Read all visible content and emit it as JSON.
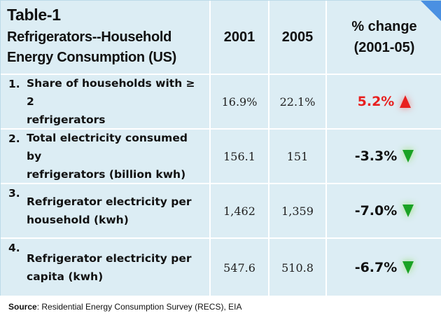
{
  "header": {
    "table_id": "Table-1",
    "subtitle_line1": "Refrigerators--Household",
    "subtitle_line2": "Energy Consumption (US)",
    "col_2001": "2001",
    "col_2005": "2005",
    "col_change_line1": "% change",
    "col_change_line2": "(2001-05)"
  },
  "rows": [
    {
      "num": "1.",
      "label_line1": "Share of households with ≥ 2",
      "label_line2": "refrigerators",
      "v2001": "16.9%",
      "v2005": "22.1%",
      "change": "5.2%",
      "direction": "up",
      "change_color": "#e8201f",
      "arrow_icon": "up-arrow-icon"
    },
    {
      "num": "2.",
      "label_line1": "Total electricity consumed by",
      "label_line2": "refrigerators (billion kwh)",
      "v2001": "156.1",
      "v2005": "151",
      "change": "-3.3%",
      "direction": "down",
      "change_color": "#111111",
      "arrow_icon": "down-arrow-icon"
    },
    {
      "num": "3.",
      "label_line1": "Refrigerator electricity per",
      "label_line2": "household (kwh)",
      "v2001": "1,462",
      "v2005": "1,359",
      "change": "-7.0%",
      "direction": "down",
      "change_color": "#111111",
      "arrow_icon": "down-arrow-icon"
    },
    {
      "num": "4.",
      "label_line1": "Refrigerator electricity per",
      "label_line2": "capita (kwh)",
      "v2001": "547.6",
      "v2005": "510.8",
      "change": "-6.7%",
      "direction": "down",
      "change_color": "#111111",
      "arrow_icon": "down-arrow-icon"
    }
  ],
  "footer": {
    "source_label": "Source",
    "source_text": ": Residential Energy Consumption Survey (RECS), EIA"
  },
  "colors": {
    "cell_bg": "#dcedf4",
    "grid_line": "#ffffff",
    "up_arrow": "#e8201f",
    "down_arrow": "#1aa224",
    "corner_accent": "#4a90e2"
  }
}
